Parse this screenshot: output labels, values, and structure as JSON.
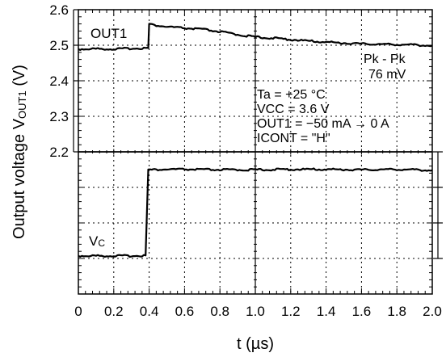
{
  "chart_data": {
    "type": "line",
    "xlabel": "t (µs)",
    "xlim": [
      0,
      2.0
    ],
    "x_ticks": [
      "0",
      "0.2",
      "0.4",
      "0.6",
      "0.8",
      "1.0",
      "1.2",
      "1.4",
      "1.6",
      "1.8",
      "2.0"
    ],
    "ylabel_prefix": "Output voltage V",
    "ylabel_subscript": "OUT1",
    "ylabel_suffix": " (V)",
    "ylim": [
      2.2,
      2.6
    ],
    "y_ticks": [
      "2.6",
      "2.5",
      "2.4",
      "2.3",
      "2.2"
    ],
    "grid": true,
    "series": [
      {
        "name": "OUT1",
        "x": [
          0.0,
          0.1,
          0.2,
          0.3,
          0.395,
          0.4,
          0.42,
          0.5,
          0.6,
          0.7,
          0.8,
          0.9,
          1.0,
          1.1,
          1.2,
          1.3,
          1.4,
          1.5,
          1.6,
          1.7,
          1.8,
          1.9,
          2.0
        ],
        "y": [
          2.489,
          2.49,
          2.489,
          2.491,
          2.492,
          2.56,
          2.557,
          2.552,
          2.548,
          2.545,
          2.538,
          2.53,
          2.523,
          2.52,
          2.516,
          2.512,
          2.509,
          2.506,
          2.504,
          2.503,
          2.502,
          2.501,
          2.499
        ]
      },
      {
        "name": "VC",
        "label_main": "V",
        "label_sub": "C",
        "x": [
          0.0,
          0.1,
          0.2,
          0.3,
          0.38,
          0.395,
          0.42,
          0.5,
          0.6,
          0.8,
          1.0,
          1.2,
          1.4,
          1.6,
          1.8,
          2.0
        ],
        "level": [
          0.02,
          0.02,
          0.02,
          0.02,
          0.025,
          0.98,
          0.98,
          0.985,
          0.985,
          0.98,
          0.98,
          0.985,
          0.985,
          0.98,
          0.985,
          0.975
        ]
      }
    ],
    "annotations": {
      "pkpk_line1": "Pk - Pk",
      "pkpk_line2": "76 mV",
      "cond_ta": "Ta = +25 °C",
      "cond_vcc": "VCC = 3.6 V",
      "cond_out1": "OUT1 = −50 mA → 0 A",
      "cond_icont": "ICONT = \"H\""
    }
  }
}
